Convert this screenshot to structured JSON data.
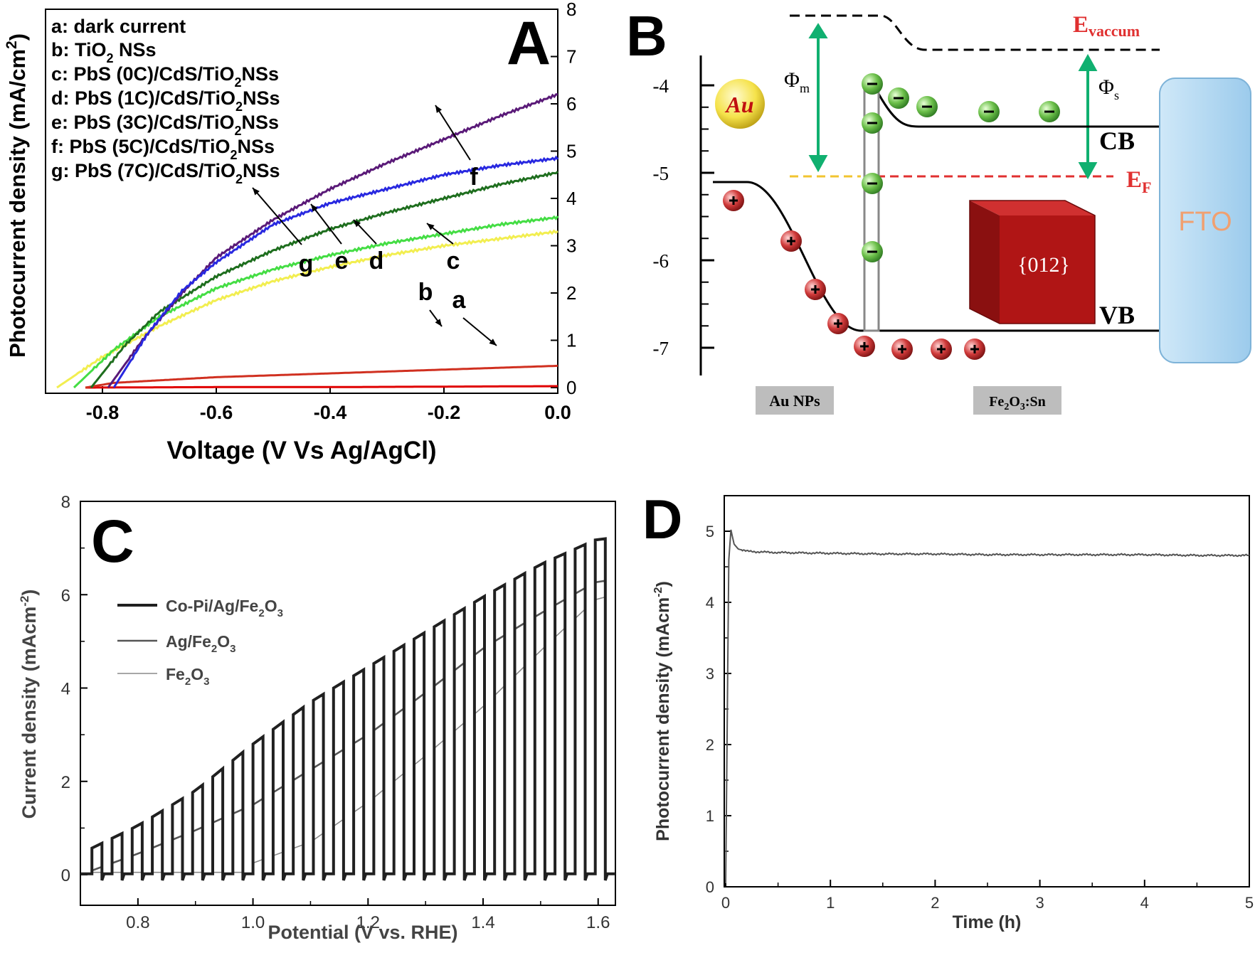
{
  "panels": {
    "A": {
      "letter": "A"
    },
    "B": {
      "letter": "B"
    },
    "C": {
      "letter": "C"
    },
    "D": {
      "letter": "D"
    }
  },
  "chart_data": [
    {
      "id": "A",
      "type": "line",
      "xlabel": "Voltage (V Vs Ag/AgCl)",
      "ylabel": "Photocurrent density (mA/cm2)",
      "xlim": [
        -0.9,
        0.0
      ],
      "ylim": [
        0,
        8
      ],
      "x_ticks": [
        "-0.8",
        "-0.6",
        "-0.4",
        "-0.2",
        "0.0"
      ],
      "y_ticks": [
        "0",
        "1",
        "2",
        "3",
        "4",
        "5",
        "6",
        "7",
        "8"
      ],
      "legend_lines": [
        "a: dark current",
        "b: TiO2 NSs",
        "c: PbS (0C)/CdS/TiO2NSs",
        "d: PbS (1C)/CdS/TiO2NSs",
        "e: PbS (3C)/CdS/TiO2NSs",
        "f:  PbS (5C)/CdS/TiO2NSs",
        "g: PbS (7C)/CdS/TiO2NSs"
      ],
      "legend_placement": "top-left",
      "series": [
        {
          "name": "a",
          "color": "#e00000",
          "x": [
            -0.83,
            -0.6,
            -0.4,
            -0.2,
            0.0
          ],
          "y": [
            0.0,
            0.01,
            0.01,
            0.02,
            0.03
          ]
        },
        {
          "name": "b",
          "color": "#d03020",
          "x": [
            -0.83,
            -0.78,
            -0.6,
            -0.4,
            -0.2,
            0.0
          ],
          "y": [
            0.0,
            0.1,
            0.22,
            0.3,
            0.38,
            0.46
          ]
        },
        {
          "name": "c",
          "color": "#f2ee50",
          "x": [
            -0.88,
            -0.8,
            -0.7,
            -0.6,
            -0.5,
            -0.4,
            -0.3,
            -0.2,
            -0.1,
            0.0
          ],
          "y": [
            0.0,
            0.65,
            1.3,
            1.85,
            2.25,
            2.55,
            2.8,
            3.0,
            3.15,
            3.3
          ]
        },
        {
          "name": "d",
          "color": "#44dd44",
          "x": [
            -0.85,
            -0.78,
            -0.7,
            -0.6,
            -0.5,
            -0.4,
            -0.3,
            -0.2,
            -0.1,
            0.0
          ],
          "y": [
            0.0,
            0.8,
            1.5,
            2.1,
            2.5,
            2.8,
            3.05,
            3.25,
            3.45,
            3.6
          ]
        },
        {
          "name": "e",
          "color": "#1e6e1e",
          "x": [
            -0.82,
            -0.76,
            -0.7,
            -0.6,
            -0.5,
            -0.4,
            -0.3,
            -0.2,
            -0.1,
            0.0
          ],
          "y": [
            0.0,
            0.9,
            1.6,
            2.35,
            2.9,
            3.35,
            3.7,
            4.0,
            4.3,
            4.55
          ]
        },
        {
          "name": "f",
          "color": "#5a1a78",
          "x": [
            -0.79,
            -0.73,
            -0.66,
            -0.6,
            -0.5,
            -0.4,
            -0.3,
            -0.2,
            -0.1,
            0.0
          ],
          "y": [
            0.0,
            1.0,
            2.0,
            2.75,
            3.55,
            4.2,
            4.75,
            5.25,
            5.75,
            6.2
          ]
        },
        {
          "name": "g",
          "color": "#2828e0",
          "x": [
            -0.78,
            -0.72,
            -0.66,
            -0.6,
            -0.5,
            -0.4,
            -0.3,
            -0.2,
            -0.1,
            0.0
          ],
          "y": [
            0.0,
            1.15,
            2.05,
            2.65,
            3.45,
            3.9,
            4.2,
            4.5,
            4.7,
            4.85
          ]
        }
      ],
      "annotations": [
        "a",
        "b",
        "c",
        "d",
        "e",
        "f",
        "g"
      ]
    },
    {
      "id": "C",
      "type": "line",
      "xlabel": "Potential (V vs. RHE)",
      "ylabel": "Current density (mAcm-2)",
      "xlim": [
        0.7,
        1.63
      ],
      "ylim": [
        -0.3,
        8
      ],
      "x_ticks": [
        "0.8",
        "1.0",
        "1.2",
        "1.4",
        "1.6"
      ],
      "y_ticks": [
        "0",
        "2",
        "4",
        "6",
        "8"
      ],
      "legend_placement": "top-left",
      "chop_start": 0.72,
      "chop_period": 0.035,
      "series": [
        {
          "name": "Co-Pi/Ag/Fe2O3",
          "color": "#202020",
          "width": 4,
          "onset": 0.7,
          "x": [
            0.7,
            0.8,
            0.9,
            1.0,
            1.1,
            1.2,
            1.3,
            1.4,
            1.5,
            1.6
          ],
          "y": [
            0.45,
            1.05,
            1.8,
            2.8,
            3.7,
            4.45,
            5.2,
            5.95,
            6.65,
            7.2
          ]
        },
        {
          "name": "Ag/Fe2O3",
          "color": "#555555",
          "width": 2.6,
          "onset": 0.72,
          "x": [
            0.7,
            0.8,
            0.9,
            1.0,
            1.1,
            1.2,
            1.3,
            1.4,
            1.5,
            1.6
          ],
          "y": [
            0.0,
            0.45,
            0.95,
            1.5,
            2.25,
            3.0,
            3.9,
            4.85,
            5.6,
            6.3
          ]
        },
        {
          "name": "Fe2O3",
          "color": "#8a8a8a",
          "width": 1.6,
          "onset": 0.98,
          "x": [
            0.7,
            0.8,
            0.9,
            1.0,
            1.1,
            1.2,
            1.3,
            1.4,
            1.5,
            1.6
          ],
          "y": [
            0.0,
            0.0,
            0.05,
            0.25,
            0.7,
            1.55,
            2.55,
            3.6,
            4.8,
            5.95
          ]
        }
      ]
    },
    {
      "id": "D",
      "type": "line",
      "xlabel": "Time (h)",
      "ylabel": "Photocurrent density (mAcm-2)",
      "xlim": [
        0,
        5
      ],
      "ylim": [
        0,
        5.5
      ],
      "x_ticks": [
        "0",
        "1",
        "2",
        "3",
        "4",
        "5"
      ],
      "y_ticks": [
        "0",
        "1",
        "2",
        "3",
        "4",
        "5"
      ],
      "series": [
        {
          "name": "",
          "color": "#555555",
          "x": [
            0.0,
            0.03,
            0.05,
            0.08,
            0.12,
            0.2,
            0.3,
            0.5,
            1.0,
            1.5,
            2.0,
            2.5,
            3.0,
            3.5,
            4.0,
            4.5,
            5.0
          ],
          "y": [
            0.05,
            4.6,
            5.02,
            4.82,
            4.75,
            4.72,
            4.71,
            4.7,
            4.69,
            4.68,
            4.68,
            4.67,
            4.67,
            4.67,
            4.67,
            4.66,
            4.66
          ]
        }
      ]
    }
  ],
  "diagram_B": {
    "y_ticks": [
      "-4",
      "-5",
      "-6",
      "-7"
    ],
    "labels": {
      "evac_main": "E",
      "evac_sub": "vaccum",
      "phi_m_main": "Φ",
      "phi_m_sub": "m",
      "phi_s_main": "Φ",
      "phi_s_sub": "s",
      "ef_main": "E",
      "ef_sub": "F",
      "cb": "CB",
      "vb": "VB",
      "fto": "FTO",
      "cube": "{012}",
      "au": "Au",
      "box_au": "Au NPs",
      "box_fe_a": "Fe",
      "box_fe_b": "2",
      "box_fe_c": "O",
      "box_fe_d": "3",
      "box_fe_e": ":Sn"
    },
    "colors": {
      "electron": "#6cc04a",
      "hole": "#d03a3a",
      "arrow": "#10b070",
      "ef_line": "#e03030",
      "evac_text": "#e03030",
      "fto_fill": "#aed6f0",
      "fto_text": "#f0a070",
      "cube": "#b01515"
    }
  }
}
